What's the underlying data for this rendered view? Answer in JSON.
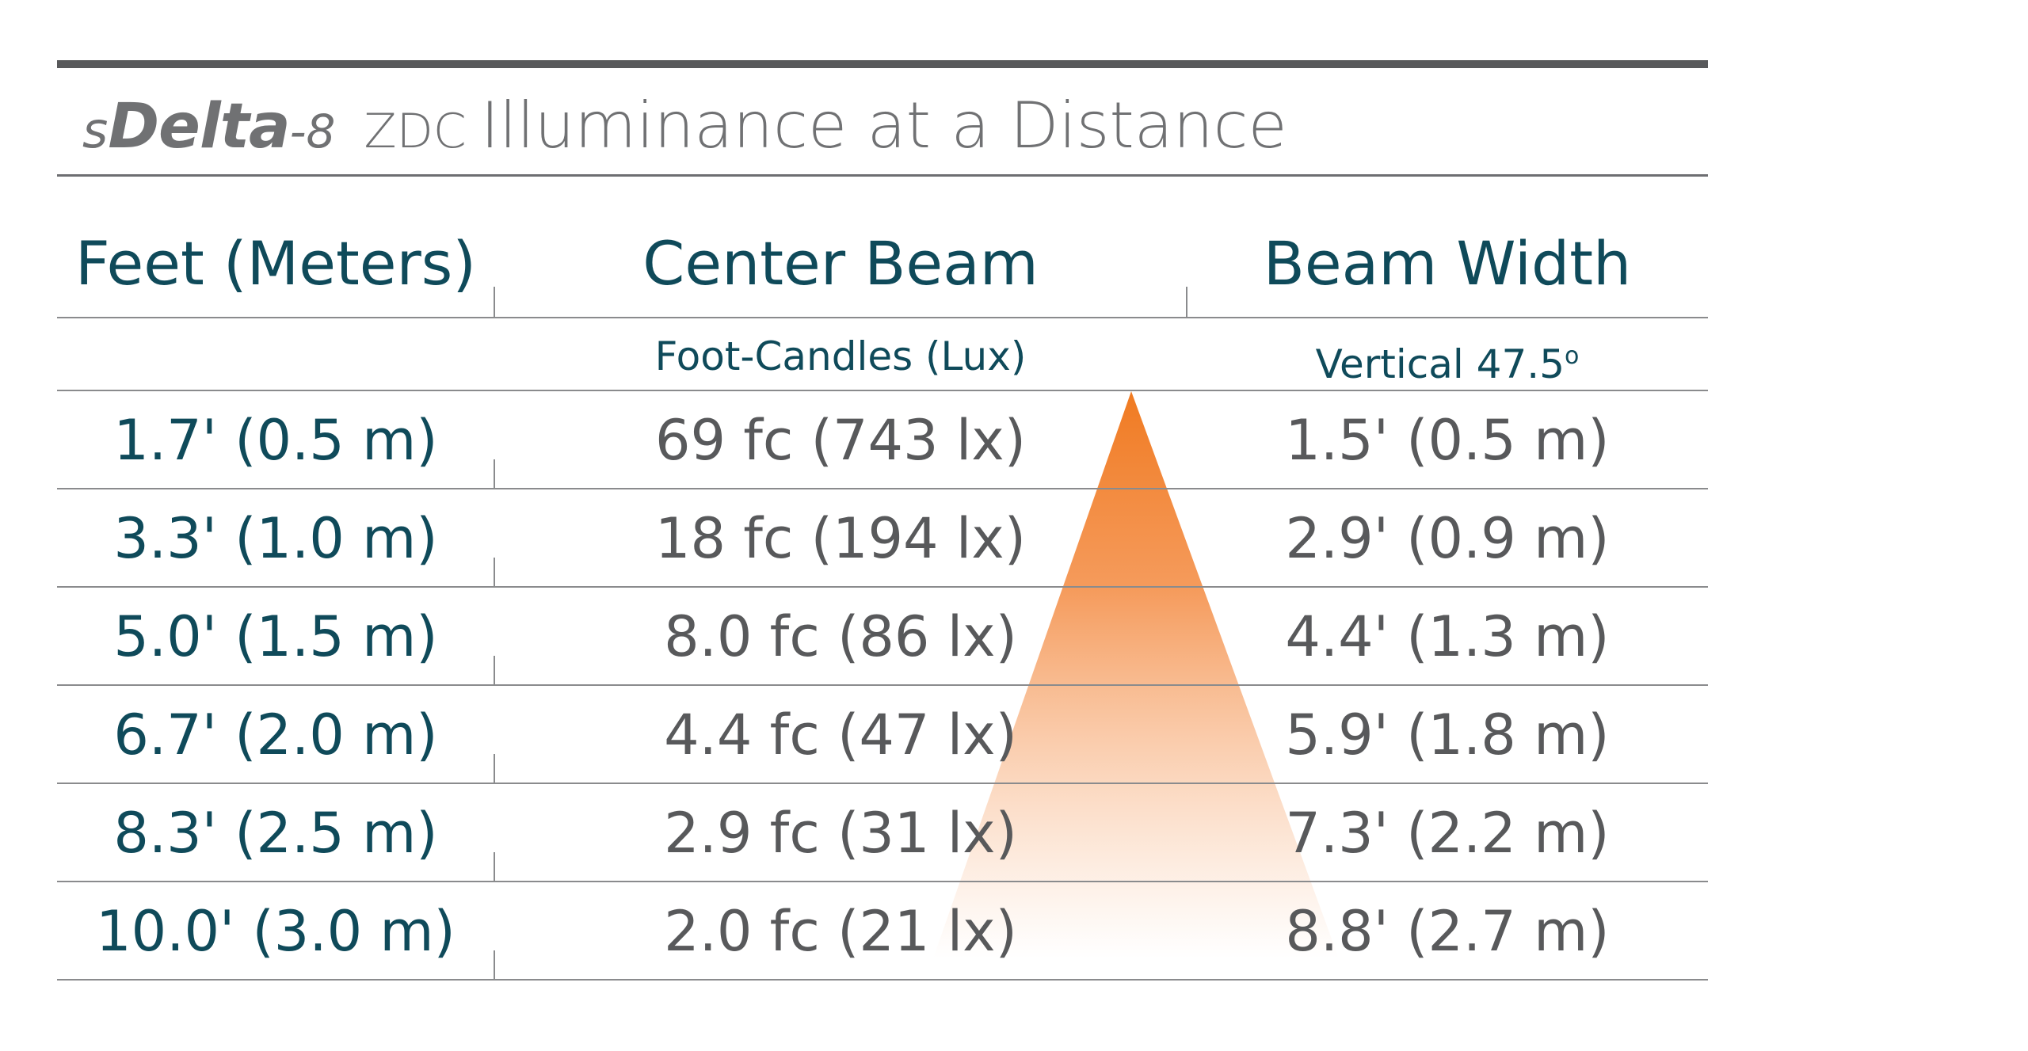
{
  "title": {
    "brand_s": "s",
    "brand_main": "Delta",
    "brand_num": "-8",
    "zdc": "ZDC",
    "rest": "Illuminance at a Distance"
  },
  "headers": {
    "distance": "Feet (Meters)",
    "center_beam": "Center Beam",
    "beam_width": "Beam Width"
  },
  "subheaders": {
    "center_beam": "Foot-Candles (Lux)",
    "beam_width": "Vertical 47.5",
    "beam_width_sup": "o"
  },
  "rows": [
    {
      "distance": "1.7' (0.5 m)",
      "center_beam": "69 fc (743 lx)",
      "beam_width": "1.5' (0.5 m)"
    },
    {
      "distance": "3.3' (1.0 m)",
      "center_beam": "18 fc (194 lx)",
      "beam_width": "2.9' (0.9 m)"
    },
    {
      "distance": "5.0' (1.5 m)",
      "center_beam": "8.0 fc (86 lx)",
      "beam_width": "4.4' (1.3 m)"
    },
    {
      "distance": "6.7' (2.0 m)",
      "center_beam": "4.4 fc (47 lx)",
      "beam_width": "5.9' (1.8 m)"
    },
    {
      "distance": "8.3' (2.5 m)",
      "center_beam": "2.9 fc (31 lx)",
      "beam_width": "7.3' (2.2 m)"
    },
    {
      "distance": "10.0' (3.0 m)",
      "center_beam": "2.0 fc (21 lx)",
      "beam_width": "8.8' (2.7 m)"
    }
  ],
  "colors": {
    "beam_top": "#f07a21",
    "beam_bottom": "#ffffff",
    "heading_teal": "#0f4a5a",
    "value_gray": "#58595b"
  }
}
